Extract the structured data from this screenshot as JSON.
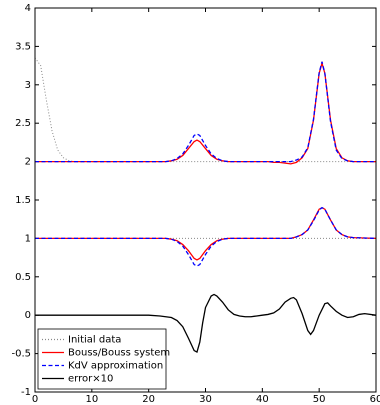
{
  "chart_data": {
    "type": "line",
    "xlim": [
      0,
      60
    ],
    "xticks": [
      0,
      10,
      20,
      30,
      40,
      50,
      60
    ],
    "ylim": [
      -1,
      4
    ],
    "yticks": [
      -1,
      -0.5,
      0,
      0.5,
      1,
      1.5,
      2,
      2.5,
      3,
      3.5,
      4
    ],
    "grid": false,
    "legend": "lower-left",
    "series": [
      {
        "name": "Initial data",
        "color": "#888888",
        "style": "dotted",
        "x": [
          0,
          1,
          2,
          3,
          4,
          5,
          6,
          7,
          60,
          null,
          0,
          60
        ],
        "values": [
          3.35,
          3.25,
          2.8,
          2.4,
          2.15,
          2.05,
          2.01,
          2,
          2,
          null,
          1,
          1
        ]
      },
      {
        "name": "Bouss/Bouss system",
        "color": "#ff0000",
        "style": "solid",
        "x": [
          0,
          23,
          24,
          25,
          26,
          27,
          28,
          28.5,
          29,
          30,
          31,
          32,
          33,
          34,
          41,
          42,
          43,
          44,
          45,
          46,
          47,
          48,
          49,
          50,
          50.5,
          51,
          52,
          53,
          54,
          55,
          56,
          60,
          null,
          0,
          23,
          24,
          25,
          26,
          27,
          28,
          28.5,
          29,
          30,
          31,
          32,
          33,
          34,
          45,
          46,
          47,
          48,
          49,
          50,
          50.5,
          51,
          52,
          53,
          54,
          55,
          56,
          60
        ],
        "values": [
          2,
          2,
          2.01,
          2.03,
          2.08,
          2.17,
          2.26,
          2.28,
          2.26,
          2.17,
          2.08,
          2.03,
          2.01,
          2,
          2,
          1.99,
          1.99,
          1.98,
          1.97,
          1.99,
          2.05,
          2.17,
          2.54,
          3.15,
          3.28,
          3.15,
          2.54,
          2.17,
          2.05,
          2.01,
          2,
          2,
          null,
          1,
          1,
          0.99,
          0.97,
          0.92,
          0.84,
          0.74,
          0.72,
          0.74,
          0.84,
          0.92,
          0.97,
          0.99,
          1,
          1,
          1.02,
          1.05,
          1.11,
          1.24,
          1.38,
          1.4,
          1.38,
          1.24,
          1.11,
          1.05,
          1.02,
          1.01,
          1
        ]
      },
      {
        "name": "KdV approximation",
        "color": "#0000ff",
        "style": "dashed",
        "x": [
          0,
          23,
          24,
          25,
          26,
          27,
          28,
          28.5,
          29,
          30,
          31,
          32,
          33,
          34,
          45,
          46,
          47,
          48,
          49,
          50,
          50.5,
          51,
          52,
          53,
          54,
          55,
          56,
          60,
          null,
          0,
          23,
          24,
          25,
          26,
          27,
          28,
          28.5,
          29,
          30,
          31,
          32,
          33,
          34,
          45,
          46,
          47,
          48,
          49,
          50,
          50.5,
          51,
          52,
          53,
          54,
          55,
          56,
          60
        ],
        "values": [
          2,
          2,
          2.01,
          2.04,
          2.1,
          2.21,
          2.34,
          2.36,
          2.34,
          2.21,
          2.1,
          2.04,
          2.01,
          2,
          2,
          2.02,
          2.06,
          2.18,
          2.55,
          3.16,
          3.3,
          3.15,
          2.52,
          2.15,
          2.04,
          2.01,
          2,
          2,
          null,
          1,
          1,
          0.99,
          0.96,
          0.9,
          0.79,
          0.66,
          0.64,
          0.66,
          0.79,
          0.9,
          0.96,
          0.99,
          1,
          1,
          1.02,
          1.05,
          1.11,
          1.23,
          1.37,
          1.4,
          1.38,
          1.24,
          1.11,
          1.05,
          1.02,
          1.01,
          1
        ]
      },
      {
        "name": "error×10",
        "color": "#000000",
        "style": "solid",
        "x": [
          0,
          20,
          22,
          24,
          25,
          26,
          27,
          28,
          28.5,
          29,
          29.5,
          30,
          31,
          31.5,
          32,
          33,
          34,
          35,
          36,
          37,
          38,
          39,
          40,
          41,
          42,
          43,
          44,
          45,
          45.5,
          46,
          47,
          48,
          48.5,
          49,
          50,
          51,
          51.5,
          52,
          53,
          54,
          55,
          56,
          57,
          58,
          60
        ],
        "values": [
          0,
          0,
          -0.01,
          -0.03,
          -0.07,
          -0.15,
          -0.3,
          -0.46,
          -0.48,
          -0.35,
          -0.1,
          0.1,
          0.25,
          0.27,
          0.25,
          0.17,
          0.07,
          0.01,
          -0.01,
          -0.02,
          -0.02,
          -0.01,
          0,
          0.01,
          0.03,
          0.08,
          0.17,
          0.22,
          0.23,
          0.2,
          0.02,
          -0.2,
          -0.25,
          -0.2,
          0,
          0.15,
          0.16,
          0.12,
          0.05,
          0,
          -0.03,
          -0.02,
          0.01,
          0.02,
          0
        ]
      }
    ]
  }
}
